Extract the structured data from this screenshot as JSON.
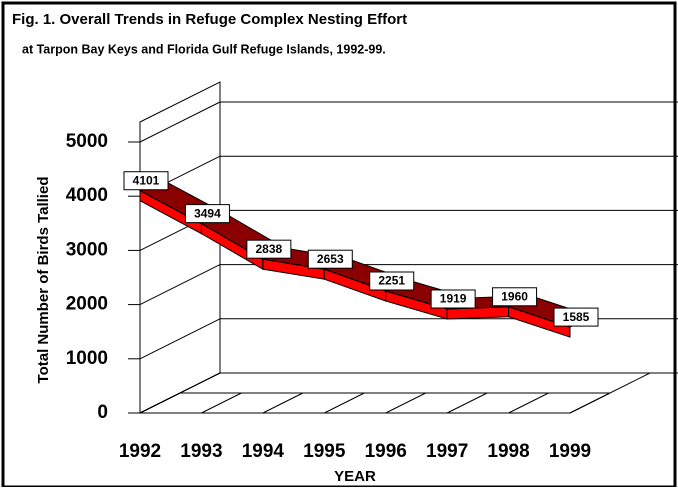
{
  "chart_data": {
    "type": "ribbon",
    "title": "Fig.  1.  Overall Trends in Refuge Complex Nesting Effort",
    "subtitle": "at Tarpon Bay Keys and Florida Gulf Refuge Islands, 1992-99.",
    "y_label": "Total Number of Birds Tallied",
    "x_label": "YEAR",
    "categories": [
      "1992",
      "1993",
      "1994",
      "1995",
      "1996",
      "1997",
      "1998",
      "1999"
    ],
    "values": [
      4101,
      3494,
      2838,
      2653,
      2251,
      1919,
      1960,
      1585
    ],
    "color": "#ff0000",
    "ylim": [
      0,
      5000
    ],
    "yticks": [
      0,
      1000,
      2000,
      3000,
      4000,
      5000
    ],
    "grid": true
  }
}
